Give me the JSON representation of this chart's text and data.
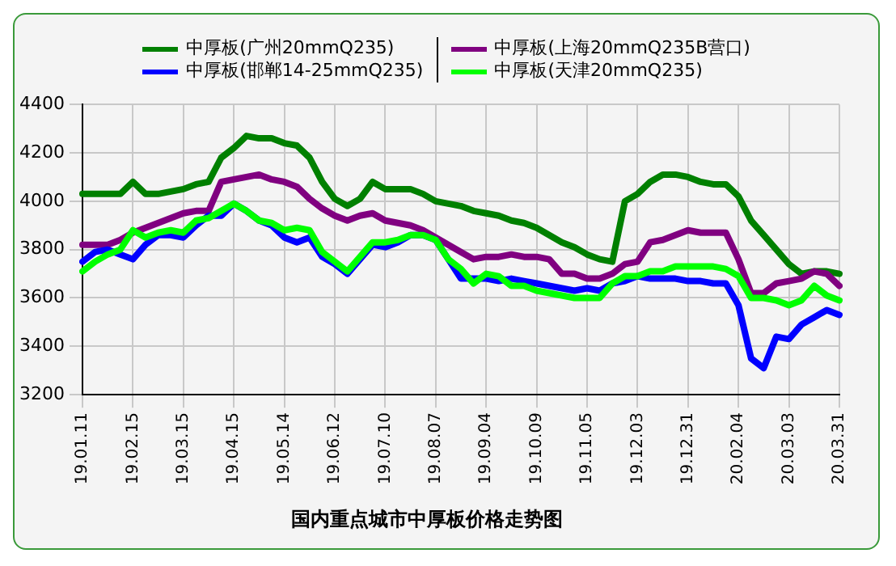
{
  "chart_data": {
    "type": "line",
    "title": "国内重点城市中厚板价格走势图",
    "categories": [
      "19.01.11",
      null,
      null,
      null,
      "19.02.15",
      null,
      null,
      null,
      "19.03.15",
      null,
      null,
      null,
      "19.04.15",
      null,
      null,
      null,
      "19.05.14",
      null,
      null,
      null,
      "19.06.12",
      null,
      null,
      null,
      "19.07.10",
      null,
      null,
      null,
      "19.08.07",
      null,
      null,
      null,
      "19.09.04",
      null,
      null,
      null,
      "19.10.09",
      null,
      null,
      null,
      "19.11.05",
      null,
      null,
      null,
      "19.12.03",
      null,
      null,
      null,
      "19.12.31",
      null,
      null,
      null,
      "20.02.04",
      null,
      null,
      null,
      "20.03.03",
      null,
      null,
      null,
      "20.03.31"
    ],
    "series": [
      {
        "name": "中厚板(广州20mmQ235)",
        "color": "#008000",
        "values": [
          4030,
          4030,
          4030,
          4030,
          4080,
          4030,
          4030,
          4040,
          4050,
          4070,
          4080,
          4180,
          4220,
          4270,
          4260,
          4260,
          4240,
          4230,
          4180,
          4080,
          4010,
          3980,
          4010,
          4080,
          4050,
          4050,
          4050,
          4030,
          4000,
          3990,
          3980,
          3960,
          3950,
          3940,
          3920,
          3910,
          3890,
          3860,
          3830,
          3810,
          3780,
          3760,
          3750,
          4000,
          4030,
          4080,
          4110,
          4110,
          4100,
          4080,
          4070,
          4070,
          4020,
          3920,
          3860,
          3800,
          3740,
          3700,
          3710,
          3710,
          3700
        ]
      },
      {
        "name": "中厚板(上海20mmQ235B营口)",
        "color": "#800080",
        "values": [
          3820,
          3820,
          3820,
          3840,
          3870,
          3890,
          3910,
          3930,
          3950,
          3960,
          3960,
          4080,
          4090,
          4100,
          4110,
          4090,
          4080,
          4060,
          4010,
          3970,
          3940,
          3920,
          3940,
          3950,
          3920,
          3910,
          3900,
          3880,
          3850,
          3820,
          3790,
          3760,
          3770,
          3770,
          3780,
          3770,
          3770,
          3760,
          3700,
          3700,
          3680,
          3680,
          3700,
          3740,
          3750,
          3830,
          3840,
          3860,
          3880,
          3870,
          3870,
          3870,
          3760,
          3620,
          3620,
          3660,
          3670,
          3680,
          3710,
          3700,
          3650
        ]
      },
      {
        "name": "中厚板(邯郸14-25mmQ235)",
        "color": "#0000ff",
        "values": [
          3750,
          3790,
          3800,
          3780,
          3760,
          3820,
          3860,
          3860,
          3850,
          3900,
          3940,
          3940,
          3990,
          3960,
          3920,
          3900,
          3850,
          3830,
          3850,
          3770,
          3740,
          3700,
          3760,
          3820,
          3810,
          3830,
          3860,
          3860,
          3840,
          3760,
          3680,
          3680,
          3680,
          3670,
          3680,
          3670,
          3660,
          3650,
          3640,
          3630,
          3640,
          3630,
          3660,
          3670,
          3690,
          3680,
          3680,
          3680,
          3670,
          3670,
          3660,
          3660,
          3570,
          3350,
          3310,
          3440,
          3430,
          3490,
          3520,
          3550,
          3530
        ]
      },
      {
        "name": "中厚板(天津20mmQ235)",
        "color": "#00ff00",
        "values": [
          3710,
          3750,
          3780,
          3800,
          3880,
          3850,
          3870,
          3880,
          3870,
          3920,
          3930,
          3960,
          3990,
          3960,
          3920,
          3910,
          3880,
          3890,
          3880,
          3790,
          3750,
          3710,
          3770,
          3830,
          3830,
          3840,
          3860,
          3860,
          3840,
          3760,
          3720,
          3660,
          3700,
          3690,
          3650,
          3650,
          3630,
          3620,
          3610,
          3600,
          3600,
          3600,
          3660,
          3690,
          3690,
          3710,
          3710,
          3730,
          3730,
          3730,
          3730,
          3720,
          3690,
          3600,
          3600,
          3590,
          3570,
          3590,
          3650,
          3610,
          3590
        ]
      }
    ],
    "ylim": [
      3200,
      4400
    ],
    "yticks": [
      3200,
      3400,
      3600,
      3800,
      4000,
      4200,
      4400
    ],
    "grid": true,
    "legend": "top",
    "marker": "none",
    "line_style": "solid"
  }
}
